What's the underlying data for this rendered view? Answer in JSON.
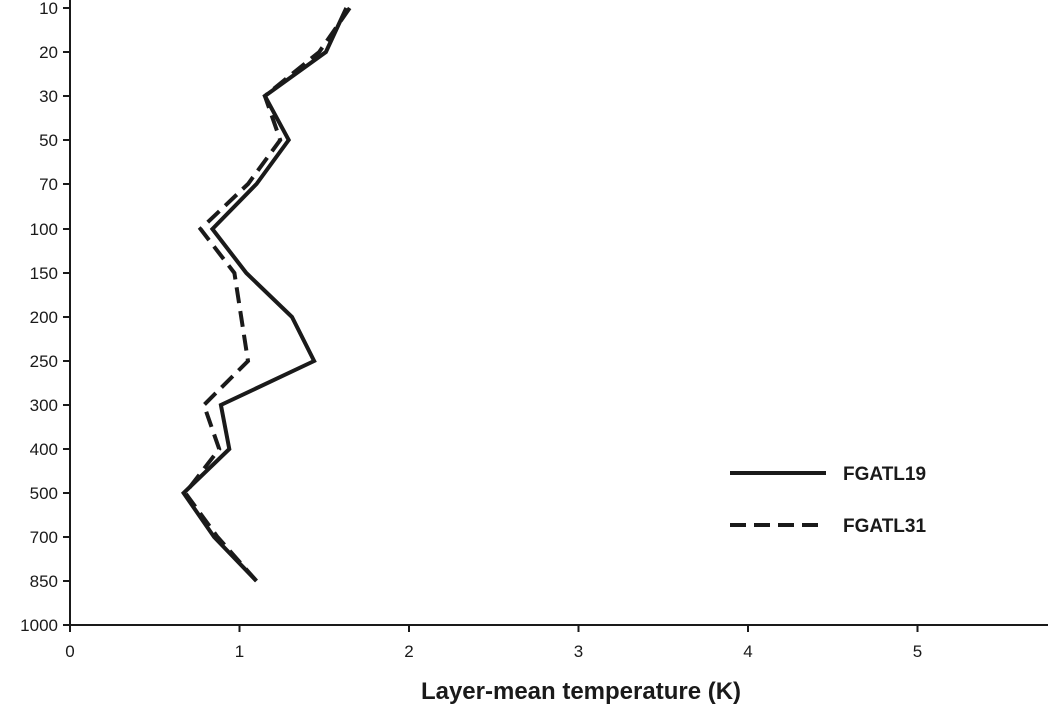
{
  "chart_data": {
    "type": "line",
    "xlabel": "Layer-mean temperature (K)",
    "ylabel": "",
    "x_ticks": [
      0,
      1,
      2,
      3,
      4,
      5
    ],
    "y_ticks": [
      10,
      20,
      30,
      50,
      70,
      100,
      150,
      200,
      250,
      300,
      400,
      500,
      700,
      850,
      1000
    ],
    "xlim": [
      0,
      5.8
    ],
    "y_axis_inverted": true,
    "grid": false,
    "legend_position": "bottom-right",
    "series": [
      {
        "name": "FGATL19",
        "style": "solid",
        "color": "#1a1a1a",
        "points": [
          {
            "x": 1.63,
            "y": 10
          },
          {
            "x": 1.51,
            "y": 20
          },
          {
            "x": 1.15,
            "y": 30
          },
          {
            "x": 1.29,
            "y": 50
          },
          {
            "x": 1.1,
            "y": 70
          },
          {
            "x": 0.84,
            "y": 100
          },
          {
            "x": 1.04,
            "y": 150
          },
          {
            "x": 1.31,
            "y": 200
          },
          {
            "x": 1.44,
            "y": 250
          },
          {
            "x": 0.89,
            "y": 300
          },
          {
            "x": 0.94,
            "y": 400
          },
          {
            "x": 0.67,
            "y": 500
          },
          {
            "x": 0.85,
            "y": 700
          },
          {
            "x": 1.1,
            "y": 850
          }
        ]
      },
      {
        "name": "FGATL31",
        "style": "dashed",
        "color": "#1a1a1a",
        "points": [
          {
            "x": 1.65,
            "y": 10
          },
          {
            "x": 1.47,
            "y": 20
          },
          {
            "x": 1.15,
            "y": 30
          },
          {
            "x": 1.24,
            "y": 50
          },
          {
            "x": 1.05,
            "y": 70
          },
          {
            "x": 0.77,
            "y": 100
          },
          {
            "x": 0.97,
            "y": 150
          },
          {
            "x": 1.05,
            "y": 250
          },
          {
            "x": 0.79,
            "y": 300
          },
          {
            "x": 0.88,
            "y": 400
          },
          {
            "x": 0.68,
            "y": 500
          },
          {
            "x": 0.87,
            "y": 700
          },
          {
            "x": 1.1,
            "y": 850
          }
        ]
      }
    ]
  }
}
